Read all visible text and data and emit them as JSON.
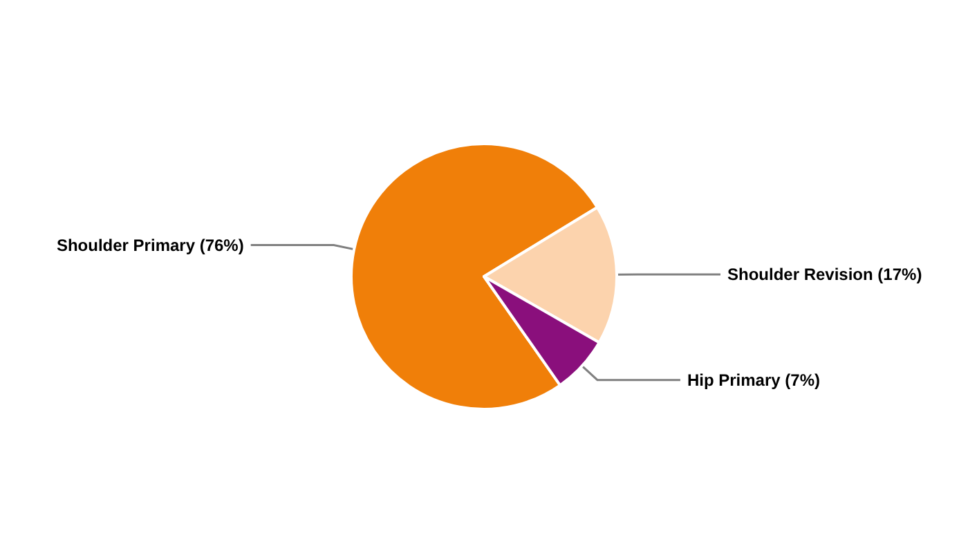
{
  "chart_data": {
    "type": "pie",
    "categories": [
      "Shoulder Primary",
      "Shoulder Revision",
      "Hip Primary"
    ],
    "values": [
      76,
      17,
      7
    ],
    "value_labels": [
      "(76%)",
      "(17%)",
      "(7%)"
    ],
    "colors": [
      "#f07f09",
      "#fcd3ad",
      "#8a0f7c"
    ],
    "legend": false
  }
}
